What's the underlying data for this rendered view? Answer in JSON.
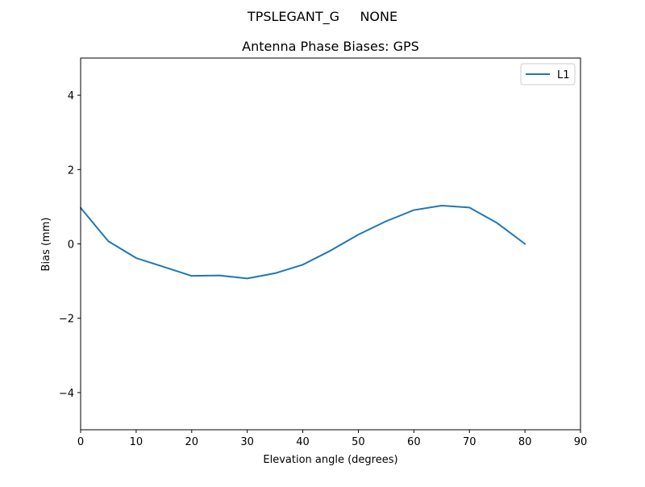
{
  "chart_data": {
    "type": "line",
    "suptitle": "TPSLEGANT_G     NONE",
    "title": "Antenna Phase Biases: GPS",
    "xlabel": "Elevation angle (degrees)",
    "ylabel": "Bias (mm)",
    "xlim": [
      0,
      90
    ],
    "ylim": [
      -5,
      5
    ],
    "xticks": [
      0,
      10,
      20,
      30,
      40,
      50,
      60,
      70,
      80,
      90
    ],
    "yticks": [
      -4,
      -2,
      0,
      2,
      4
    ],
    "xtick_labels": [
      "0",
      "10",
      "20",
      "30",
      "40",
      "50",
      "60",
      "70",
      "80",
      "90"
    ],
    "ytick_labels": [
      "−4",
      "−2",
      "0",
      "2",
      "4"
    ],
    "grid": false,
    "legend_position": "top-right",
    "series": [
      {
        "name": "L1",
        "color": "#1f77b4",
        "x": [
          0,
          5,
          10,
          15,
          20,
          25,
          30,
          35,
          40,
          45,
          50,
          55,
          60,
          65,
          70,
          75,
          80
        ],
        "y": [
          0.97,
          0.07,
          -0.38,
          -0.62,
          -0.86,
          -0.85,
          -0.93,
          -0.79,
          -0.56,
          -0.18,
          0.25,
          0.61,
          0.91,
          1.03,
          0.98,
          0.56,
          0.0
        ]
      }
    ]
  }
}
